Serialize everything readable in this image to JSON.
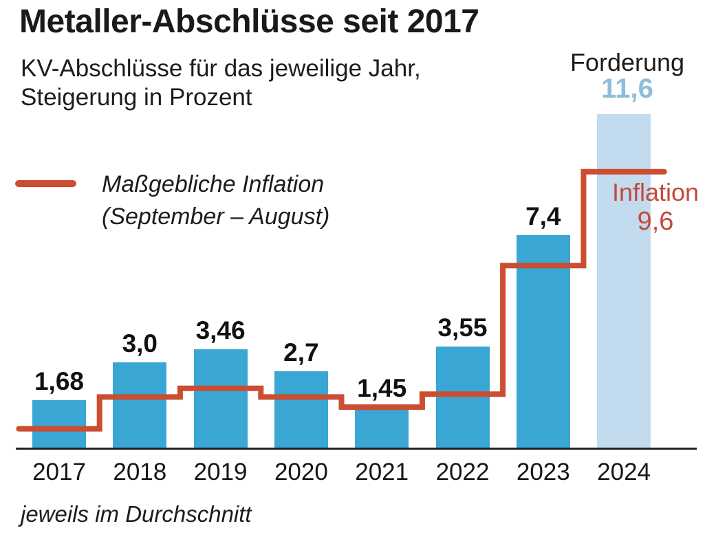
{
  "title": "Metaller-Abschlüsse seit 2017",
  "subtitle": {
    "line1": "KV-Abschlüsse für das jeweilige Jahr,",
    "line2": "Steigerung in Prozent"
  },
  "legend": {
    "line1": "Maßgebliche Inflation",
    "line2": "(September – August)"
  },
  "annotations": {
    "forderung_label": "Forderung",
    "forderung_value": "11,6",
    "inflation_label": "Inflation",
    "inflation_value": "9,6"
  },
  "footer": "jeweils im Durchschnitt",
  "colors": {
    "bar": "#39a6d3",
    "forecast_bar": "#c2dbee",
    "forecast_value_text": "#8cbedc",
    "inflation_line": "#cb4d32",
    "inflation_text": "#c4493b",
    "text": "#1a1a1a",
    "axis": "#222222"
  },
  "chart_data": {
    "type": "bar",
    "title": "Metaller-Abschlüsse seit 2017",
    "subtitle": "KV-Abschlüsse für das jeweilige Jahr, Steigerung in Prozent",
    "categories": [
      "2017",
      "2018",
      "2019",
      "2020",
      "2021",
      "2022",
      "2023",
      "2024"
    ],
    "series": [
      {
        "name": "KV-Abschluss Steigerung in Prozent",
        "type": "bar",
        "values": [
          1.68,
          3.0,
          3.46,
          2.7,
          1.45,
          3.55,
          7.4,
          11.6
        ],
        "labels": [
          "1,68",
          "3,0",
          "3,46",
          "2,7",
          "1,45",
          "3,55",
          "7,4",
          "11,6"
        ],
        "forecast_index": 7,
        "forecast_label": "Forderung"
      },
      {
        "name": "Maßgebliche Inflation (September – August)",
        "type": "step-line",
        "values": [
          0.7,
          1.8,
          2.1,
          1.8,
          1.45,
          1.9,
          6.35,
          9.6
        ],
        "last_value_label": "9,6"
      }
    ],
    "xlabel": "",
    "ylabel": "Prozent",
    "ylim": [
      0,
      12.5
    ],
    "grid": false,
    "legend_position": "middle-left",
    "footnote": "jeweils im Durchschnitt"
  }
}
